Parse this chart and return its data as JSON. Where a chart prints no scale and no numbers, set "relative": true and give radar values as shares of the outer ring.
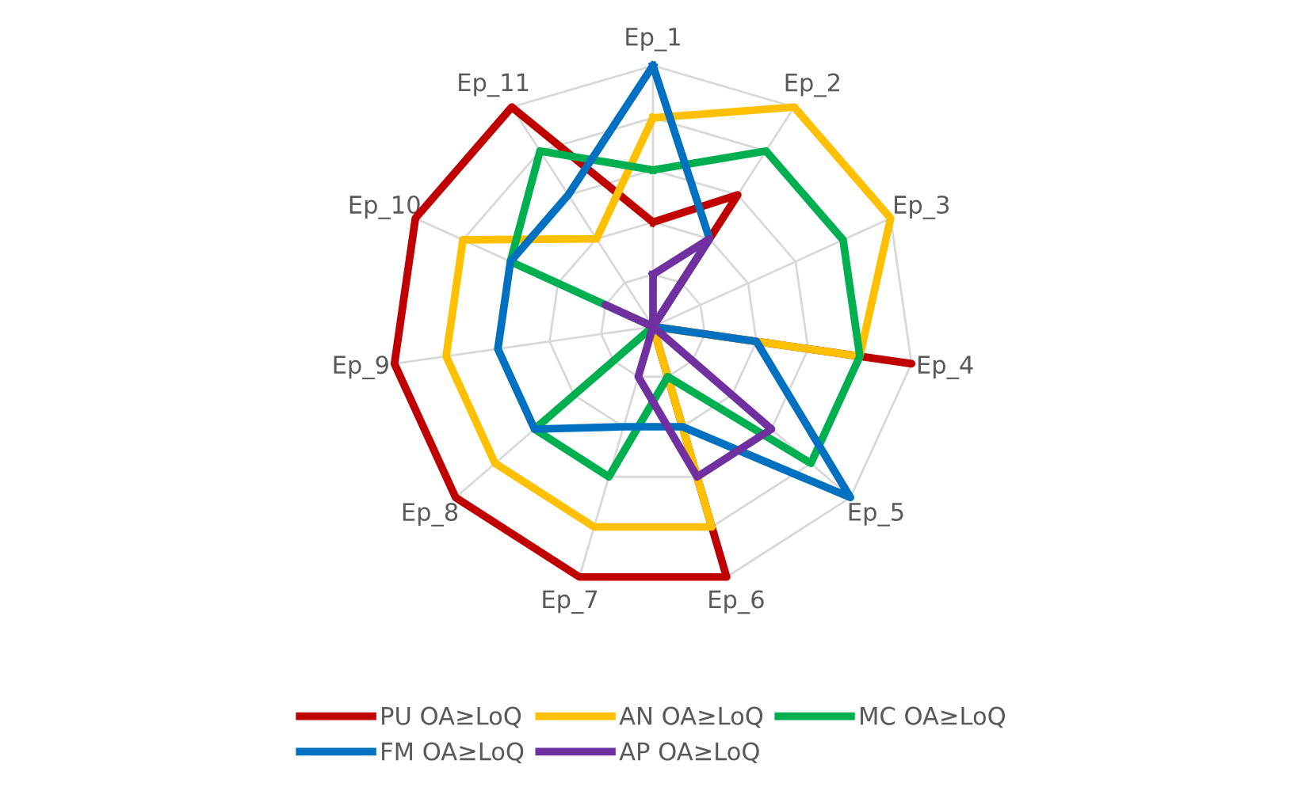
{
  "chart_data": {
    "type": "radar",
    "relative": true,
    "grid": true,
    "legend": "bottom",
    "categories": [
      "Ep_1",
      "Ep_2",
      "Ep_3",
      "Ep_4",
      "Ep_5",
      "Ep_6",
      "Ep_7",
      "Ep_8",
      "Ep_9",
      "Ep_10",
      "Ep_11"
    ],
    "series": [
      {
        "name": "PU OA≥LoQ",
        "color": "#c00000",
        "values": [
          0.4,
          0.6,
          0,
          1.0,
          0,
          1.0,
          1.0,
          1.0,
          1.0,
          1.0,
          1.0
        ]
      },
      {
        "name": "AN OA≥LoQ",
        "color": "#ffc000",
        "values": [
          0.8,
          1.0,
          1.0,
          0.8,
          0,
          0.8,
          0.8,
          0.8,
          0.8,
          0.8,
          0.4
        ]
      },
      {
        "name": "MC OA≥LoQ",
        "color": "#00b050",
        "values": [
          0.6,
          0.8,
          0.8,
          0.8,
          0.8,
          0.2,
          0.6,
          0.6,
          0,
          0.6,
          0.8
        ]
      },
      {
        "name": "FM OA≥LoQ",
        "color": "#0070c0",
        "values": [
          1.0,
          0.4,
          0,
          0.4,
          1.0,
          0.4,
          0.4,
          0.6,
          0.6,
          0.6,
          0.6
        ]
      },
      {
        "name": "AP OA≥LoQ",
        "color": "#7030a0",
        "values": [
          0.2,
          0.4,
          0,
          0,
          0.6,
          0.6,
          0.2,
          0,
          0,
          0.2,
          0
        ]
      }
    ]
  }
}
